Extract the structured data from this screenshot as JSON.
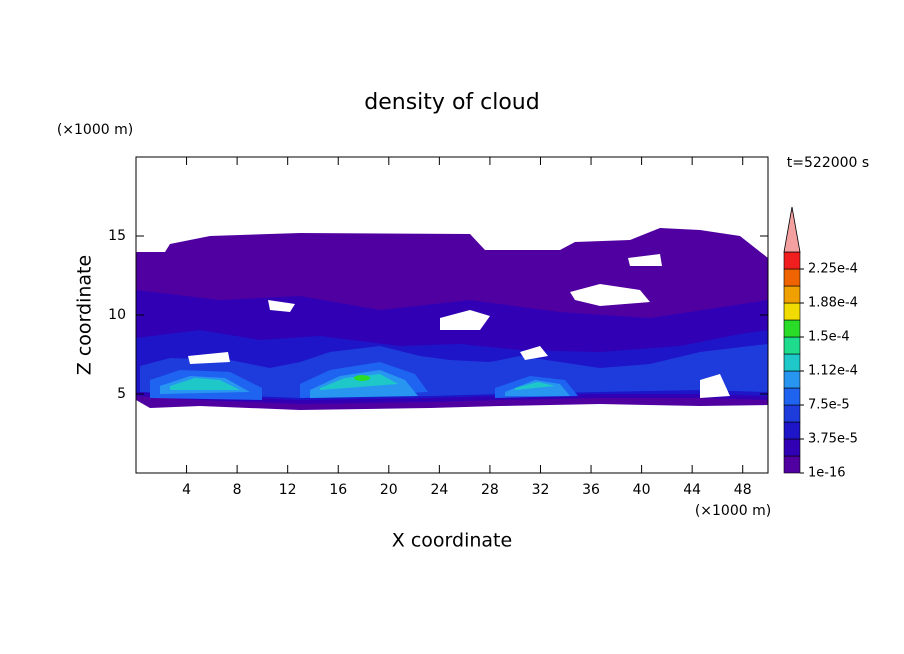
{
  "chart_data": {
    "type": "contour",
    "title": "density of cloud",
    "x_label": "X coordinate",
    "y_label": "Z coordinate",
    "x_unit": "(×1000 m)",
    "y_unit": "(×1000 m)",
    "annotation": "t=522000 s",
    "xlim": [
      0,
      50
    ],
    "ylim": [
      0,
      20
    ],
    "xticks": [
      4,
      8,
      12,
      16,
      20,
      24,
      28,
      32,
      36,
      40,
      44,
      48
    ],
    "yticks": [
      5,
      10,
      15
    ],
    "colorbar": {
      "levels": [
        1e-16,
        1.875e-05,
        3.75e-05,
        5.625e-05,
        7.5e-05,
        9.375e-05,
        0.0001125,
        0.00013125,
        0.00015,
        0.00016875,
        0.0001875,
        0.00020625,
        0.000225,
        0.00024375
      ],
      "colors": [
        "#5000a0",
        "#3200b4",
        "#1e14c8",
        "#1e3cdc",
        "#1e64f0",
        "#2896f0",
        "#1ec8c8",
        "#1edc8c",
        "#28dc28",
        "#f0dc00",
        "#f0a000",
        "#f06400",
        "#f01e1e"
      ],
      "extend_color": "#f4a0a0",
      "ticks": [
        {
          "value": 1e-16,
          "label": "1e-16"
        },
        {
          "value": 3.75e-05,
          "label": "3.75e-5"
        },
        {
          "value": 7.5e-05,
          "label": "7.5e-5"
        },
        {
          "value": 0.0001125,
          "label": "1.12e-4"
        },
        {
          "value": 0.00015,
          "label": "1.5e-4"
        },
        {
          "value": 0.0001875,
          "label": "1.88e-4"
        },
        {
          "value": 0.000225,
          "label": "2.25e-4"
        }
      ]
    }
  }
}
